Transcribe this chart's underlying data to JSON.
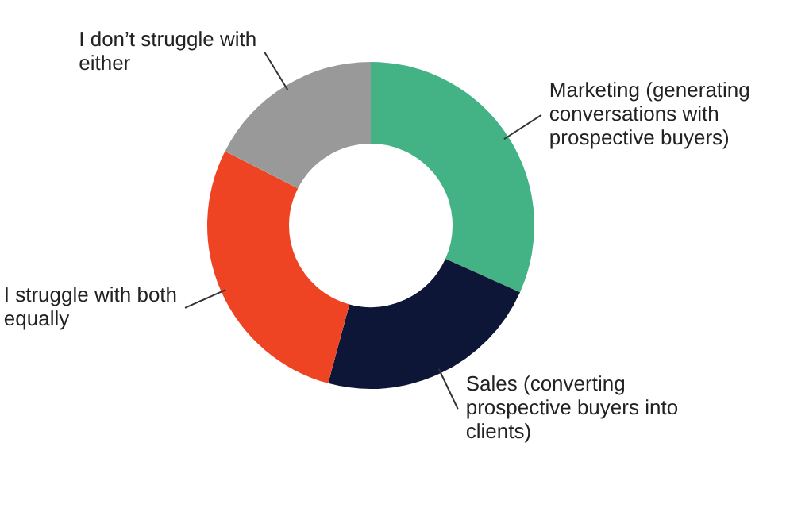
{
  "chart_data": {
    "type": "donut",
    "categories": [
      "Marketing (generating conversations with prospective buyers)",
      "Sales (converting prospective buyers into clients)",
      "I struggle with both equally",
      "I don’t struggle with either"
    ],
    "values": [
      31.7,
      22.5,
      28.3,
      17.5
    ],
    "colors": [
      "#43b386",
      "#0e1638",
      "#ef4423",
      "#999999"
    ],
    "legend": false
  }
}
